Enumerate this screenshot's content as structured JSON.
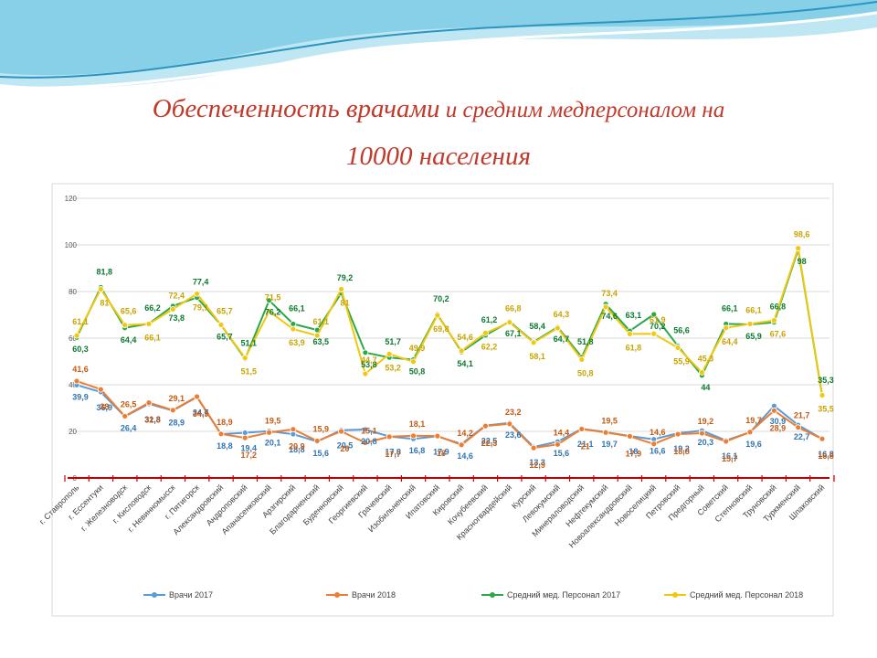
{
  "title": {
    "part1": "Обеспеченность врачами",
    "part2": " и средним медперсоналом на",
    "line2": "10000 населения"
  },
  "colors": {
    "title": "#c0392b",
    "deco_light": "#bfe6f3",
    "deco_mid": "#6cc3df",
    "deco_dark": "#2b95c2"
  },
  "chart_data": {
    "type": "line",
    "ylim": [
      0,
      120
    ],
    "yticks": [
      "0",
      "20",
      "40",
      "60",
      "80",
      "100",
      "120"
    ],
    "legend_position": "bottom",
    "categories": [
      "г. Ставрополь",
      "г. Ессентуки",
      "г. Железноводск",
      "г. Кисловодск",
      "г. Невинномысск",
      "г. Пятигорск",
      "Александровский",
      "Андроповский",
      "Апанасенковский",
      "Арзгирский",
      "Благодарненский",
      "Буденновский",
      "Георгиевский",
      "Грачевский",
      "Изобильненский",
      "Ипатовский",
      "Кировский",
      "Кочубеевский",
      "Красногвардейский",
      "Курский",
      "Левокумский",
      "Минераловодский",
      "Нефтекумский",
      "Новоалександровский",
      "Новоселицкий",
      "Петровский",
      "Предгорный",
      "Советский",
      "Степновский",
      "Труновский",
      "Туркменский",
      "Шпаковский"
    ],
    "series": [
      {
        "name": "Врачи 2017",
        "color": "#5b9bd5",
        "values": [
          39.9,
          36.9,
          26.4,
          31.8,
          28.9,
          34.7,
          18.8,
          19.4,
          20.1,
          18.8,
          15.6,
          20.5,
          20.8,
          17.8,
          16.8,
          17.9,
          14.6,
          22.5,
          23.6,
          13.3,
          15.6,
          21.1,
          19.7,
          18,
          16.6,
          19.2,
          20.3,
          16.1,
          19.6,
          30.9,
          22.7,
          16.8
        ],
        "labels": [
          "39,9",
          "36,9",
          "26,4",
          "31,8",
          "28,9",
          "34,7",
          "18,8",
          "19,4",
          "20,1",
          "18,8",
          "15,6",
          "20,5",
          "20,8",
          "17,8",
          "16,8",
          "17,9",
          "14,6",
          "22,5",
          "23,6",
          "13,3",
          "15,6",
          "21,1",
          "19,7",
          "18",
          "16,6",
          "19,2",
          "20,3",
          "16,1",
          "19,6",
          "30,9",
          "22,7",
          "16,8"
        ]
      },
      {
        "name": "Врачи 2018",
        "color": "#ed7d31",
        "values": [
          41.6,
          38,
          26.5,
          32.3,
          29.1,
          34.9,
          18.9,
          17.2,
          19.5,
          20.9,
          15.9,
          20,
          15.1,
          17.7,
          18.1,
          18,
          14.2,
          22.3,
          23.2,
          12.9,
          14.4,
          21,
          19.5,
          17.9,
          14.6,
          18.8,
          19.2,
          15.7,
          19.7,
          28.9,
          21.7,
          16.8
        ],
        "labels": [
          "41,6",
          "38",
          "26,5",
          "32,3",
          "29,1",
          "34,9",
          "18,9",
          "17,2",
          "19,5",
          "20,9",
          "15,9",
          "20",
          "15,1",
          "17,7",
          "18,1",
          "18",
          "14,2",
          "22,3",
          "23,2",
          "12,9",
          "14,4",
          "21",
          "19,5",
          "17,9",
          "14,6",
          "18,8",
          "19,2",
          "15,7",
          "19,7",
          "28,9",
          "21,7",
          "16,8"
        ]
      },
      {
        "name": "Средний мед. Персонал 2017",
        "color": "#2aa84a",
        "values": [
          60.3,
          81.8,
          64.4,
          66.2,
          73.8,
          77.4,
          65.7,
          51.1,
          76.2,
          66.1,
          63.5,
          79.2,
          53.8,
          51.7,
          50.8,
          70.2,
          54.1,
          61.2,
          67.1,
          58.4,
          64.7,
          51.8,
          74.6,
          63.1,
          70.2,
          56.6,
          44,
          66.1,
          65.9,
          66.8,
          98,
          35.3
        ],
        "labels": [
          "60,3",
          "81,8",
          "64,4",
          "66,2",
          "73,8",
          "77,4",
          "65,7",
          "51,1",
          "76,2",
          "66,1",
          "63,5",
          "79,2",
          "53,8",
          "51,7",
          "50,8",
          "70,2",
          "54,1",
          "61,2",
          "67,1",
          "58,4",
          "64,7",
          "51,8",
          "74,6",
          "63,1",
          "70,2",
          "56,6",
          "44",
          "66,1",
          "65,9",
          "66,8",
          "98",
          "35,3"
        ]
      },
      {
        "name": "Средний мед. Персонал 2018",
        "color": "#f2c80f",
        "values": [
          61.1,
          81,
          65.6,
          66.1,
          72.4,
          79.1,
          65.7,
          51.5,
          71.5,
          63.9,
          61.1,
          81,
          44.7,
          53.2,
          49.9,
          69.8,
          54.6,
          62.2,
          66.8,
          58.1,
          64.3,
          50.8,
          73.4,
          61.8,
          61.9,
          55.9,
          45.3,
          64.4,
          66.1,
          67.6,
          98.6,
          35.5
        ],
        "labels": [
          "61,1",
          "81",
          "65,6",
          "66,1",
          "72,4",
          "79,1",
          "65,7",
          "51,5",
          "71,5",
          "63,9",
          "61,1",
          "81",
          "44,7",
          "53,2",
          "49,9",
          "69,8",
          "54,6",
          "62,2",
          "66,8",
          "58,1",
          "64,3",
          "50,8",
          "73,4",
          "61,8",
          "61,9",
          "55,9",
          "45,3",
          "64,4",
          "66,1",
          "67,6",
          "98,6",
          "35,5"
        ]
      }
    ]
  }
}
